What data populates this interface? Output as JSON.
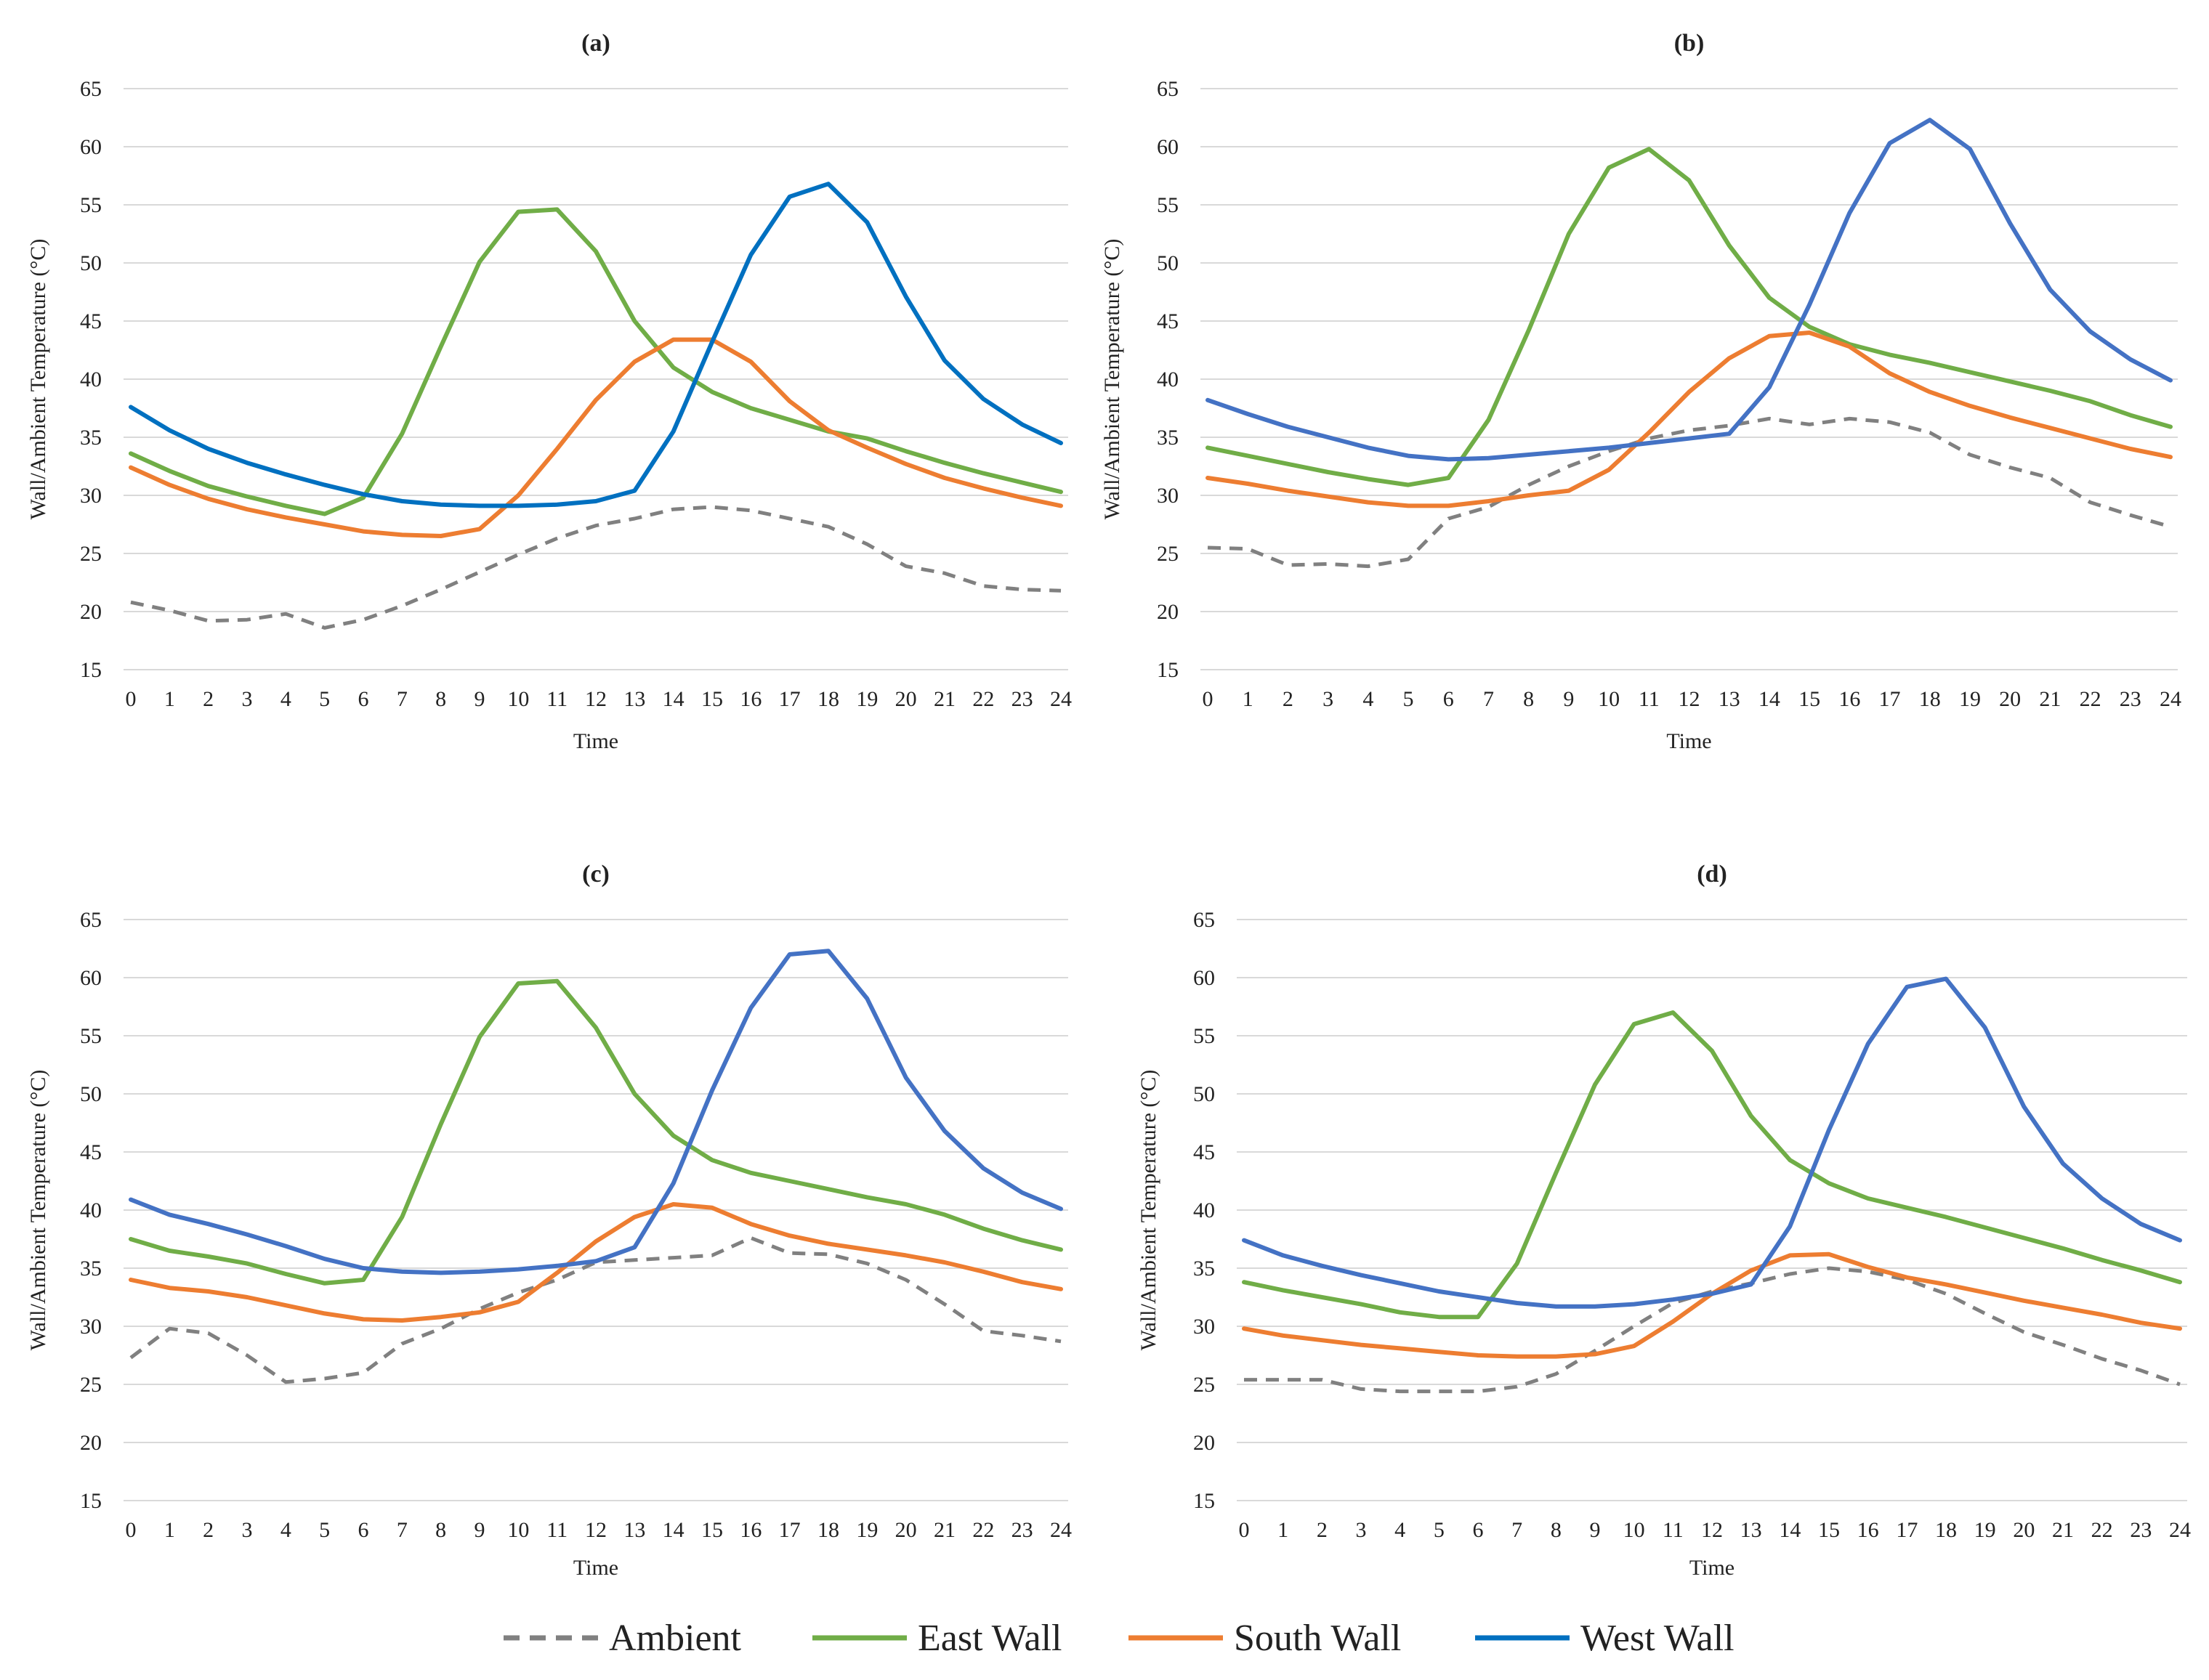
{
  "chart_data": [
    {
      "type": "line",
      "title": "(a)",
      "xlabel": "Time",
      "ylabel": "Wall/Ambient Temperature  (°C)",
      "xlim": [
        0,
        24
      ],
      "ylim": [
        15,
        65
      ],
      "yticks": [
        15,
        20,
        25,
        30,
        35,
        40,
        45,
        50,
        55,
        60,
        65
      ],
      "grid": true,
      "x": [
        0,
        1,
        2,
        3,
        4,
        5,
        6,
        7,
        8,
        9,
        10,
        11,
        12,
        13,
        14,
        15,
        16,
        17,
        18,
        19,
        20,
        21,
        22,
        23,
        24
      ],
      "series": [
        {
          "name": "Ambient",
          "values": [
            20.8,
            20.1,
            19.2,
            19.3,
            19.8,
            18.6,
            19.3,
            20.5,
            21.9,
            23.4,
            24.9,
            26.3,
            27.4,
            28.0,
            28.8,
            29.0,
            28.7,
            28.0,
            27.3,
            25.8,
            23.9,
            23.3,
            22.2,
            21.9,
            21.8
          ]
        },
        {
          "name": "East Wall",
          "values": [
            33.6,
            32.1,
            30.8,
            29.9,
            29.1,
            28.4,
            29.8,
            35.3,
            42.8,
            50.1,
            54.4,
            54.6,
            51.0,
            45.0,
            41.0,
            38.9,
            37.5,
            36.5,
            35.5,
            34.9,
            33.8,
            32.8,
            31.9,
            31.1,
            30.3
          ]
        },
        {
          "name": "South Wall",
          "values": [
            32.4,
            30.9,
            29.7,
            28.8,
            28.1,
            27.5,
            26.9,
            26.6,
            26.5,
            27.1,
            30.0,
            34.0,
            38.2,
            41.5,
            43.4,
            43.4,
            41.5,
            38.1,
            35.6,
            34.1,
            32.7,
            31.5,
            30.6,
            29.8,
            29.1
          ]
        },
        {
          "name": "West Wall",
          "values": [
            37.6,
            35.6,
            34.0,
            32.8,
            31.8,
            30.9,
            30.1,
            29.5,
            29.2,
            29.1,
            29.1,
            29.2,
            29.5,
            30.4,
            35.5,
            43.2,
            50.7,
            55.7,
            56.8,
            53.5,
            47.1,
            41.6,
            38.3,
            36.1,
            34.5
          ]
        }
      ]
    },
    {
      "type": "line",
      "title": "(b)",
      "xlabel": "Time",
      "ylabel": "Wall/Ambient Temperature  (°C)",
      "xlim": [
        0,
        24
      ],
      "ylim": [
        15,
        65
      ],
      "yticks": [
        15,
        20,
        25,
        30,
        35,
        40,
        45,
        50,
        55,
        60,
        65
      ],
      "grid": true,
      "x": [
        0,
        1,
        2,
        3,
        4,
        5,
        6,
        7,
        8,
        9,
        10,
        11,
        12,
        13,
        14,
        15,
        16,
        17,
        18,
        19,
        20,
        21,
        22,
        23,
        24
      ],
      "series": [
        {
          "name": "Ambient",
          "values": [
            25.5,
            25.4,
            24.0,
            24.1,
            23.9,
            24.5,
            28.0,
            29.0,
            30.9,
            32.5,
            33.8,
            34.9,
            35.6,
            36.0,
            36.6,
            36.1,
            36.6,
            36.3,
            35.4,
            33.5,
            32.4,
            31.5,
            29.4,
            28.3,
            27.3
          ]
        },
        {
          "name": "East Wall",
          "values": [
            34.1,
            33.4,
            32.7,
            32.0,
            31.4,
            30.9,
            31.5,
            36.5,
            44.2,
            52.5,
            58.2,
            59.8,
            57.1,
            51.5,
            47.0,
            44.5,
            43.0,
            42.1,
            41.4,
            40.6,
            39.8,
            39.0,
            38.1,
            36.9,
            35.9
          ]
        },
        {
          "name": "South Wall",
          "values": [
            31.5,
            31.0,
            30.4,
            29.9,
            29.4,
            29.1,
            29.1,
            29.5,
            30.0,
            30.4,
            32.2,
            35.4,
            38.9,
            41.8,
            43.7,
            44.0,
            42.8,
            40.5,
            38.9,
            37.7,
            36.7,
            35.8,
            34.9,
            34.0,
            33.3
          ]
        },
        {
          "name": "West Wall",
          "values": [
            38.2,
            37.0,
            35.9,
            35.0,
            34.1,
            33.4,
            33.1,
            33.2,
            33.5,
            33.8,
            34.1,
            34.5,
            34.9,
            35.3,
            39.3,
            46.4,
            54.3,
            60.3,
            62.3,
            59.8,
            53.4,
            47.7,
            44.1,
            41.7,
            39.9
          ]
        }
      ]
    },
    {
      "type": "line",
      "title": "(c)",
      "xlabel": "Time",
      "ylabel": "Wall/Ambient Temperature  (°C)",
      "xlim": [
        0,
        24
      ],
      "ylim": [
        15,
        65
      ],
      "yticks": [
        15,
        20,
        25,
        30,
        35,
        40,
        45,
        50,
        55,
        60,
        65
      ],
      "grid": true,
      "x": [
        0,
        1,
        2,
        3,
        4,
        5,
        6,
        7,
        8,
        9,
        10,
        11,
        12,
        13,
        14,
        15,
        16,
        17,
        18,
        19,
        20,
        21,
        22,
        23,
        24
      ],
      "series": [
        {
          "name": "Ambient",
          "values": [
            27.3,
            29.8,
            29.4,
            27.5,
            25.2,
            25.5,
            26.0,
            28.5,
            29.8,
            31.5,
            32.9,
            34.0,
            35.5,
            35.7,
            35.9,
            36.1,
            37.6,
            36.3,
            36.2,
            35.4,
            34.0,
            31.9,
            29.6,
            29.2,
            28.7
          ]
        },
        {
          "name": "East Wall",
          "values": [
            37.5,
            36.5,
            36.0,
            35.4,
            34.5,
            33.7,
            34.0,
            39.4,
            47.4,
            54.9,
            59.5,
            59.7,
            55.7,
            50.0,
            46.4,
            44.3,
            43.2,
            42.5,
            41.8,
            41.1,
            40.5,
            39.6,
            38.4,
            37.4,
            36.6
          ]
        },
        {
          "name": "South Wall",
          "values": [
            34.0,
            33.3,
            33.0,
            32.5,
            31.8,
            31.1,
            30.6,
            30.5,
            30.8,
            31.2,
            32.1,
            34.6,
            37.3,
            39.4,
            40.5,
            40.2,
            38.8,
            37.8,
            37.1,
            36.6,
            36.1,
            35.5,
            34.7,
            33.8,
            33.2
          ]
        },
        {
          "name": "West Wall",
          "values": [
            40.9,
            39.6,
            38.8,
            37.9,
            36.9,
            35.8,
            35.0,
            34.7,
            34.6,
            34.7,
            34.9,
            35.2,
            35.6,
            36.8,
            42.3,
            50.3,
            57.4,
            62.0,
            62.3,
            58.2,
            51.4,
            46.8,
            43.6,
            41.5,
            40.1
          ]
        }
      ]
    },
    {
      "type": "line",
      "title": "(d)",
      "xlabel": "Time",
      "ylabel": "Wall/Ambient Temperature  (°C)",
      "xlim": [
        0,
        24
      ],
      "ylim": [
        15,
        65
      ],
      "yticks": [
        15,
        20,
        25,
        30,
        35,
        40,
        45,
        50,
        55,
        60,
        65
      ],
      "grid": true,
      "x": [
        0,
        1,
        2,
        3,
        4,
        5,
        6,
        7,
        8,
        9,
        10,
        11,
        12,
        13,
        14,
        15,
        16,
        17,
        18,
        19,
        20,
        21,
        22,
        23,
        24
      ],
      "series": [
        {
          "name": "Ambient",
          "values": [
            25.4,
            25.4,
            25.4,
            24.6,
            24.4,
            24.4,
            24.4,
            24.8,
            25.9,
            27.9,
            30.0,
            32.0,
            33.0,
            33.7,
            34.5,
            35.0,
            34.7,
            34.0,
            32.8,
            31.1,
            29.5,
            28.4,
            27.2,
            26.2,
            25.0
          ]
        },
        {
          "name": "East Wall",
          "values": [
            33.8,
            33.1,
            32.5,
            31.9,
            31.2,
            30.8,
            30.8,
            35.4,
            43.2,
            50.8,
            56.0,
            57.0,
            53.7,
            48.1,
            44.3,
            42.3,
            41.0,
            40.2,
            39.4,
            38.5,
            37.6,
            36.7,
            35.7,
            34.8,
            33.8
          ]
        },
        {
          "name": "South Wall",
          "values": [
            29.8,
            29.2,
            28.8,
            28.4,
            28.1,
            27.8,
            27.5,
            27.4,
            27.4,
            27.6,
            28.3,
            30.4,
            32.8,
            34.8,
            36.1,
            36.2,
            35.1,
            34.2,
            33.6,
            32.9,
            32.2,
            31.6,
            31.0,
            30.3,
            29.8
          ]
        },
        {
          "name": "West Wall",
          "values": [
            37.4,
            36.1,
            35.2,
            34.4,
            33.7,
            33.0,
            32.5,
            32.0,
            31.7,
            31.7,
            31.9,
            32.3,
            32.8,
            33.6,
            38.6,
            46.9,
            54.3,
            59.2,
            59.9,
            55.7,
            48.9,
            44.0,
            41.0,
            38.8,
            37.4
          ]
        }
      ]
    }
  ],
  "legend": [
    {
      "name": "Ambient",
      "color": "#808080",
      "style": "dashed"
    },
    {
      "name": "East Wall",
      "color": "#70ad47",
      "style": "solid"
    },
    {
      "name": "South Wall",
      "color": "#ed7d31",
      "style": "solid"
    },
    {
      "name": "West Wall",
      "color": "#0070c0",
      "style": "solid"
    }
  ],
  "colors": {
    "Ambient": "#808080",
    "East Wall": "#70ad47",
    "South Wall": "#ed7d31",
    "West Wall": "#0070c0",
    "West Wall (b-d)": "#4472c4",
    "grid": "#d9d9d9"
  }
}
